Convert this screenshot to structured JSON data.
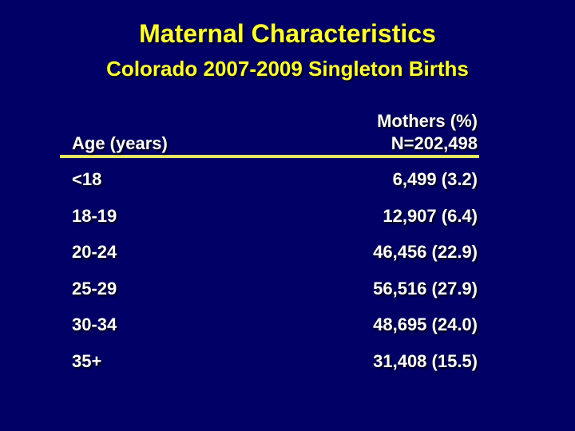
{
  "slide": {
    "title": "Maternal Characteristics",
    "subtitle": "Colorado 2007-2009 Singleton Births",
    "colors": {
      "background": "#000066",
      "title_text": "#FFFF33",
      "table_text": "#FFFFFF",
      "header_rule": "#E8E860"
    }
  },
  "table": {
    "col_age_header": "Age (years)",
    "col_mothers_header": "Mothers (%)",
    "col_n_label": "N=202,498",
    "rows": [
      {
        "age": "<18",
        "value": "6,499 (3.2)"
      },
      {
        "age": "18-19",
        "value": "12,907 (6.4)"
      },
      {
        "age": "20-24",
        "value": "46,456 (22.9)"
      },
      {
        "age": "25-29",
        "value": "56,516 (27.9)"
      },
      {
        "age": "30-34",
        "value": "48,695 (24.0)"
      },
      {
        "age": "35+",
        "value": "31,408 (15.5)"
      }
    ]
  }
}
